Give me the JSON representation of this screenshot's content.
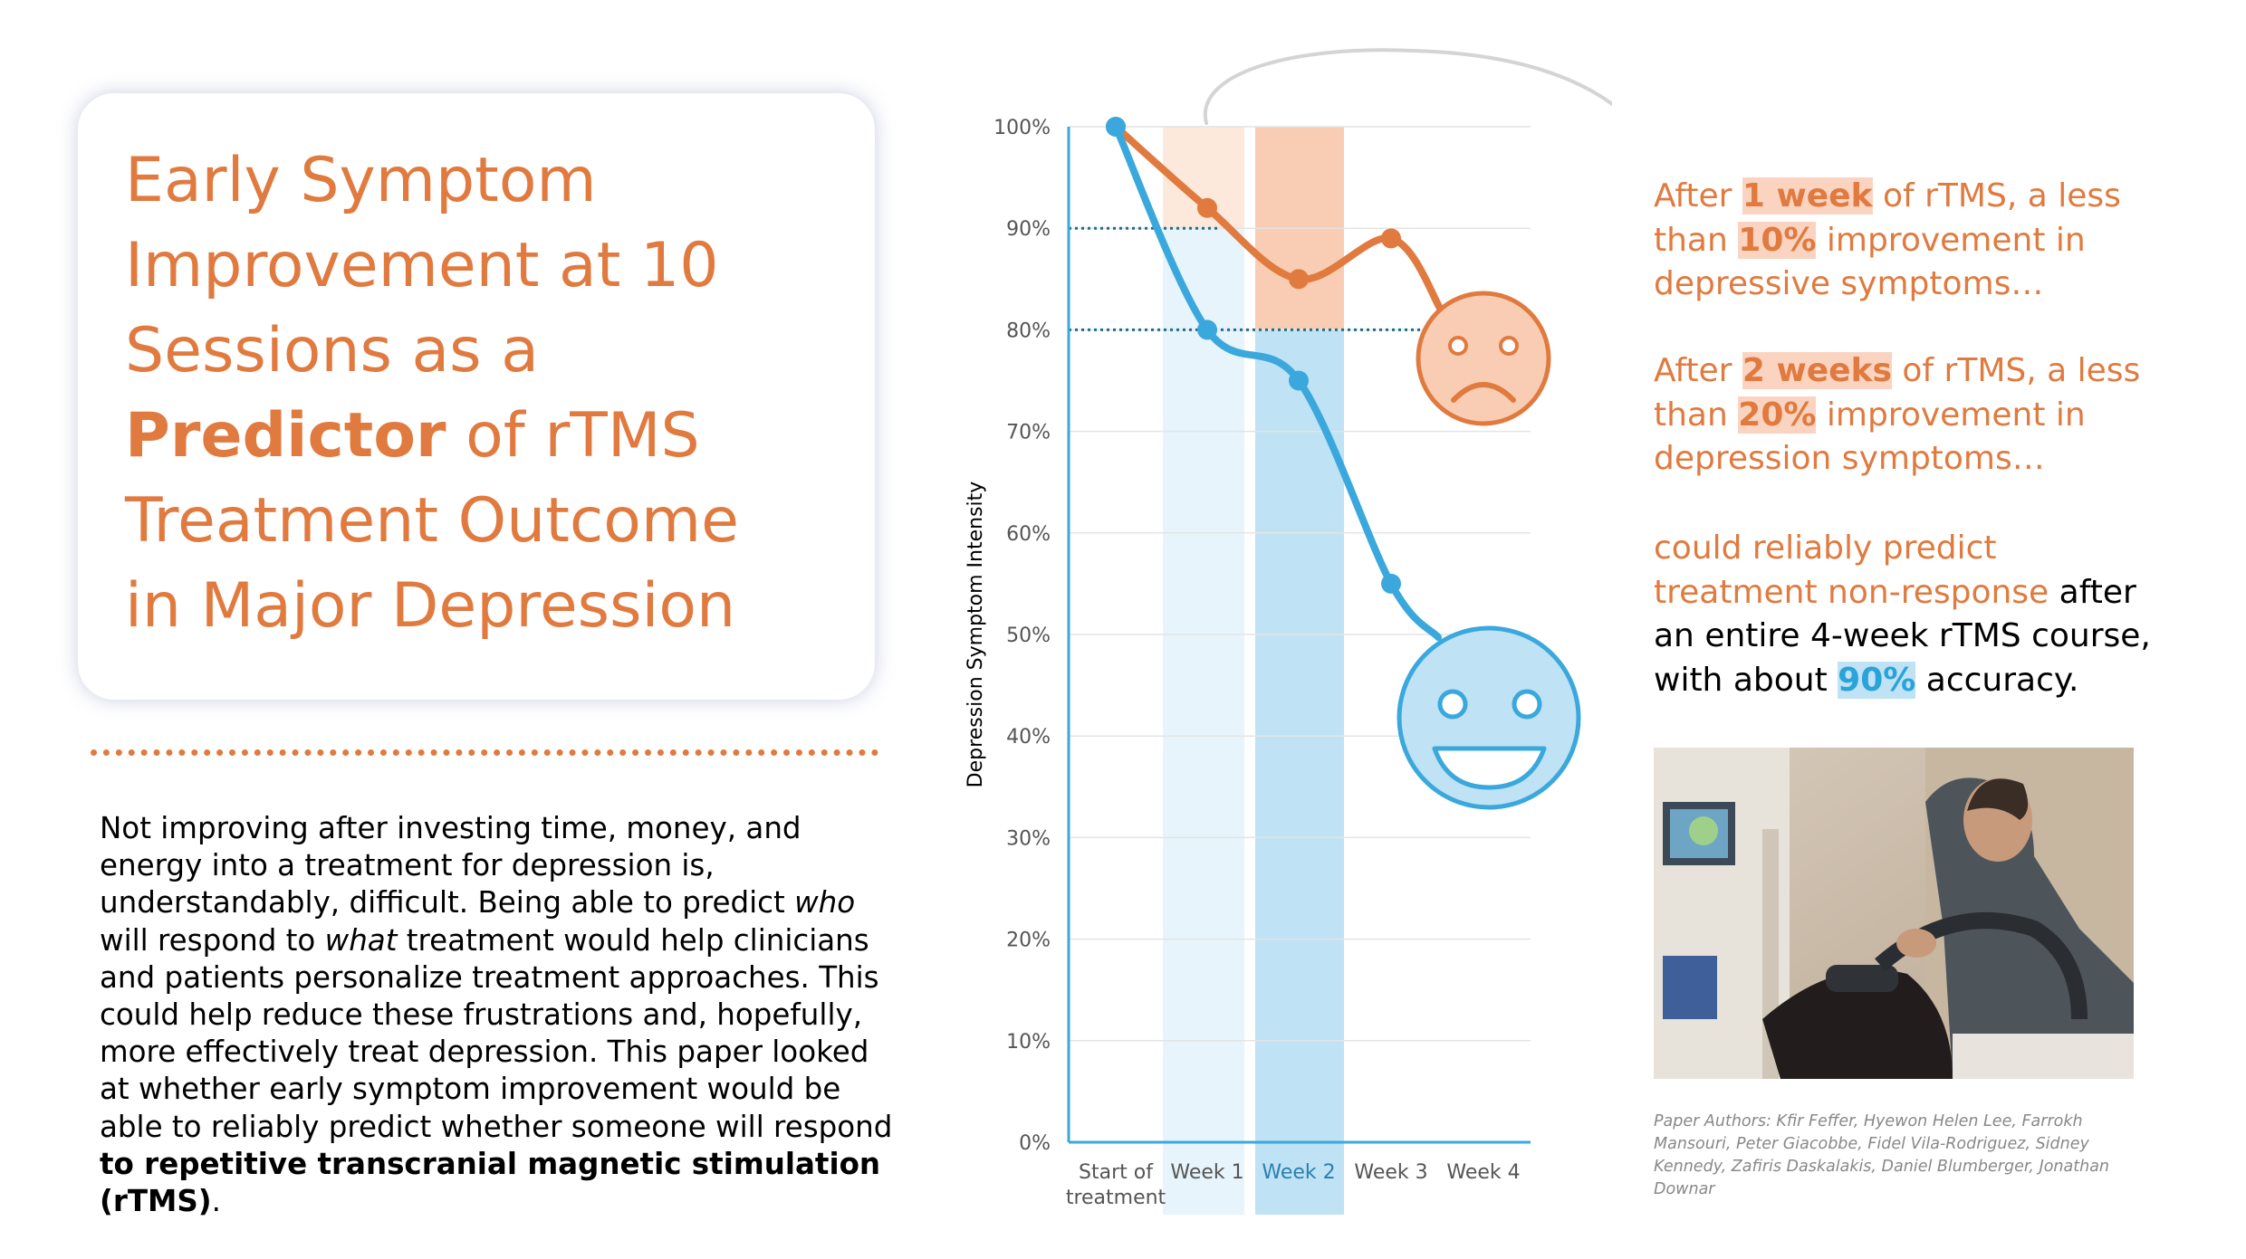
{
  "title": {
    "line1": "Early Symptom",
    "line2": "Improvement at 10",
    "line3": "Sessions as a",
    "line4_bold": "Predictor",
    "line4_rest": " of rTMS",
    "line5": "Treatment Outcome",
    "line6": "in Major Depression"
  },
  "body": {
    "part1": "Not improving after investing time, money, and energy into a treatment for depression is, understandably, difficult. Being able to predict ",
    "who": "who",
    "part2": " will respond to ",
    "what": "what",
    "part3": " treatment would help clinicians and patients personalize treatment approaches. This could help reduce these frustrations and, hopefully, more effectively treat depression. This paper looked at whether early symptom improvement would be able to reliably predict whether someone will respond ",
    "bold": "to repetitive transcranial magnetic stimulation (rTMS)",
    "end": "."
  },
  "right": {
    "p1_a": "After ",
    "p1_hl": "1 week",
    "p1_b": " of rTMS, a less than ",
    "p1_hl2": "10%",
    "p1_c": " improvement in depressive symptoms…",
    "p2_a": "After ",
    "p2_hl": "2 weeks",
    "p2_b": " of rTMS, a less than ",
    "p2_hl2": "20%",
    "p2_c": " improvement in depression symptoms…",
    "p3_a": "could reliably predict treatment non-response",
    "p3_b": " after an entire 4-week rTMS course, with about ",
    "p3_hl": "90%",
    "p3_c": " accuracy."
  },
  "authors": "Paper Authors: Kfir Feffer, Hyewon Helen Lee, Farrokh Mansouri, Peter Giacobbe, Fidel Vila-Rodriguez, Sidney Kennedy, Zafiris Daskalakis, Daniel Blumberger, Jonathan Downar",
  "colors": {
    "orange": "#e07a3f",
    "blue": "#3aa8dc",
    "orange_band": "#f9cdb3",
    "orange_band_light": "#fde8dc",
    "blue_band": "#bfe2f4",
    "blue_band_light": "#e7f4fb"
  },
  "icons": [
    "sad-face-icon",
    "happy-face-icon",
    "curved-arrow-icon"
  ],
  "chart_data": {
    "type": "line",
    "categories": [
      "Start of treatment",
      "Week 1",
      "Week 2",
      "Week 3",
      "Week 4"
    ],
    "ylabel": "Depression Symptom Intensity",
    "xlabel": "",
    "ylim": [
      0,
      100
    ],
    "yticks": [
      "0%",
      "10%",
      "20%",
      "30%",
      "40%",
      "50%",
      "60%",
      "70%",
      "80%",
      "90%",
      "100%"
    ],
    "series": [
      {
        "color": "#e07a3f",
        "values": [
          100,
          92,
          85,
          89,
          null
        ]
      },
      {
        "color": "#3aa8dc",
        "values": [
          100,
          80,
          75,
          55,
          null
        ]
      }
    ],
    "reference_lines": [
      90,
      80
    ],
    "grid": true
  }
}
